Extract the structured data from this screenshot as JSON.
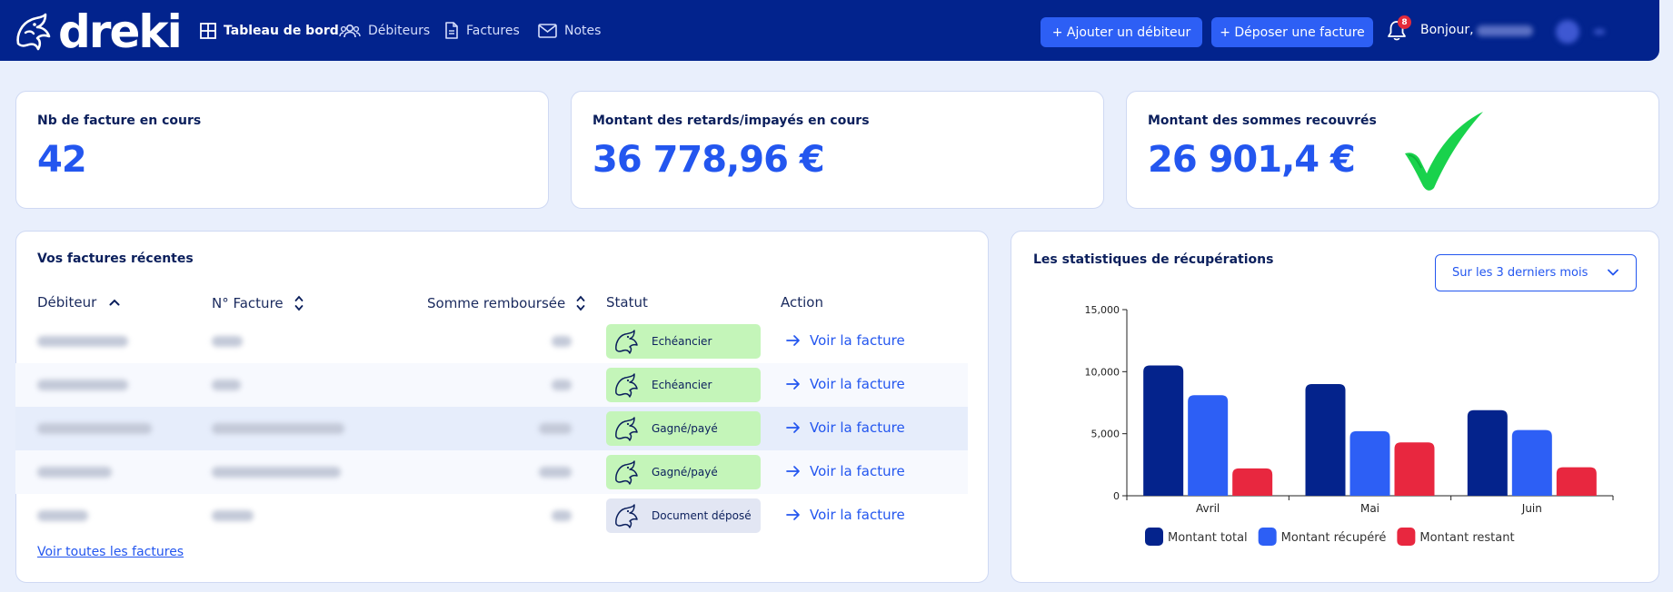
{
  "header": {
    "brand": "dreki",
    "nav": [
      {
        "label": "Tableau de bord",
        "icon": "dashboard-grid-icon",
        "active": true
      },
      {
        "label": "Débiteurs",
        "icon": "people-icon",
        "active": false
      },
      {
        "label": "Factures",
        "icon": "document-icon",
        "active": false
      },
      {
        "label": "Notes",
        "icon": "mail-icon",
        "active": false
      }
    ],
    "add_debtor_label": "+ Ajouter un débiteur",
    "upload_invoice_label": "+ Déposer une facture",
    "notifications_count": "8",
    "greeting": "Bonjour,"
  },
  "kpis": [
    {
      "label": "Nb de facture en cours",
      "value": "42"
    },
    {
      "label": "Montant des retards/impayés en cours",
      "value": "36 778,96 €"
    },
    {
      "label": "Montant des sommes recouvrés",
      "value": "26 901,4 €"
    }
  ],
  "invoices": {
    "title": "Vos factures récentes",
    "columns": {
      "debtor": "Débiteur",
      "number": "N° Facture",
      "amount": "Somme remboursée",
      "status": "Statut",
      "action": "Action"
    },
    "rows": [
      {
        "status": "Echéancier",
        "status_kind": "green",
        "action": "Voir la facture"
      },
      {
        "status": "Echéancier",
        "status_kind": "green",
        "action": "Voir la facture"
      },
      {
        "status": "Gagné/payé",
        "status_kind": "green",
        "action": "Voir la facture"
      },
      {
        "status": "Gagné/payé",
        "status_kind": "green",
        "action": "Voir la facture"
      },
      {
        "status": "Document déposé",
        "status_kind": "grey",
        "action": "Voir la facture"
      }
    ],
    "see_all_label": "Voir toutes les factures"
  },
  "stats": {
    "title": "Les statistiques de récupérations",
    "period_select": "Sur les 3 derniers mois"
  },
  "chart_data": {
    "type": "bar",
    "categories": [
      "Avril",
      "Mai",
      "Juin"
    ],
    "series": [
      {
        "name": "Montant total",
        "values": [
          10500,
          9000,
          6900
        ],
        "color": "#04238c"
      },
      {
        "name": "Montant récupéré",
        "values": [
          8100,
          5200,
          5300
        ],
        "color": "#2d5ff5"
      },
      {
        "name": "Montant restant",
        "values": [
          2200,
          4300,
          2300
        ],
        "color": "#e8273f"
      }
    ],
    "yticks": [
      "0",
      "5,000",
      "10,000",
      "15,000"
    ],
    "ylim": [
      0,
      15000
    ],
    "legend_position": "bottom",
    "grid": false
  }
}
